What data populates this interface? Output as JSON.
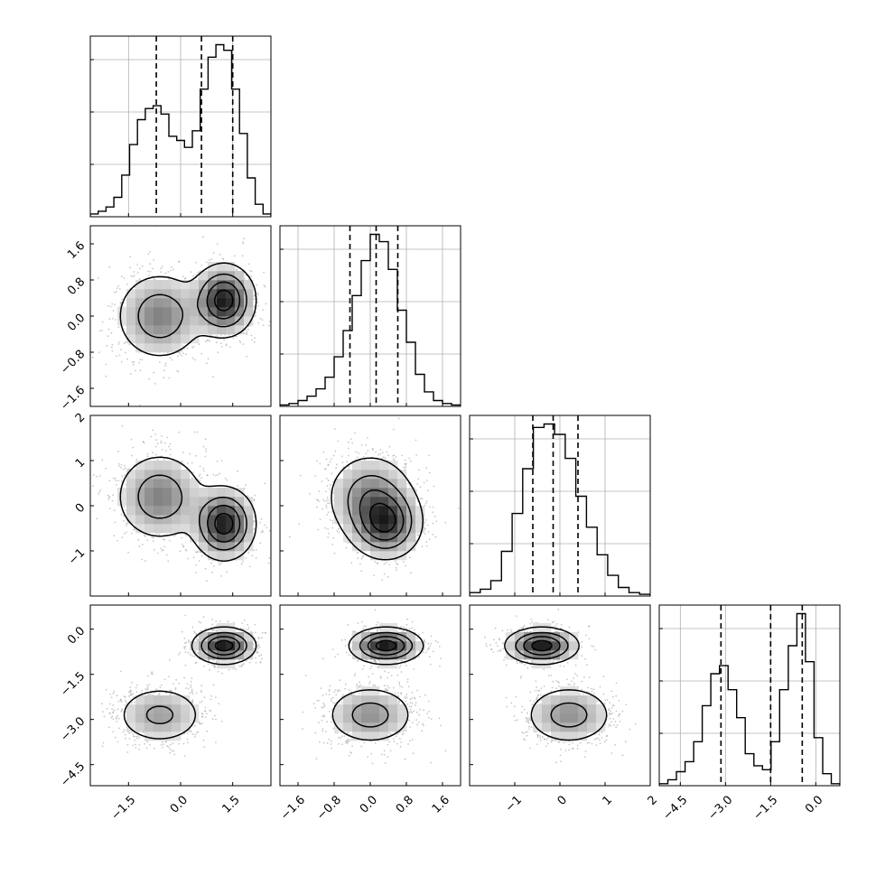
{
  "chart_data": {
    "type": "corner",
    "title": "",
    "grid": true,
    "parameters": [
      {
        "range": [
          -2.6,
          2.6
        ],
        "quantiles": [
          -0.7,
          0.6,
          1.5
        ],
        "ticks": [
          {
            "v": -1.5,
            "label": "−1.5"
          },
          {
            "v": 0.0,
            "label": "0.0"
          },
          {
            "v": 1.5,
            "label": "1.5"
          }
        ]
      },
      {
        "range": [
          -2.0,
          2.0
        ],
        "quantiles": [
          -0.45,
          0.13,
          0.61
        ],
        "ticks": [
          {
            "v": -1.6,
            "label": "−1.6"
          },
          {
            "v": -0.8,
            "label": "−0.8"
          },
          {
            "v": 0.0,
            "label": "0.0"
          },
          {
            "v": 0.8,
            "label": "0.8"
          },
          {
            "v": 1.6,
            "label": "1.6"
          }
        ]
      },
      {
        "range": [
          -2.0,
          2.0
        ],
        "quantiles": [
          -0.6,
          -0.15,
          0.4
        ],
        "ticks": [
          {
            "v": -1,
            "label": "−1"
          },
          {
            "v": 0,
            "label": "0"
          },
          {
            "v": 1,
            "label": "1"
          },
          {
            "v": 2,
            "label": "2"
          }
        ]
      },
      {
        "range": [
          -5.2,
          0.8
        ],
        "quantiles": [
          -3.15,
          -1.5,
          -0.45
        ],
        "ticks": [
          {
            "v": -4.5,
            "label": "−4.5"
          },
          {
            "v": -3.0,
            "label": "−3.0"
          },
          {
            "v": -1.5,
            "label": "−1.5"
          },
          {
            "v": 0.0,
            "label": "0.0"
          }
        ]
      }
    ],
    "histograms": [
      [
        2,
        4,
        7,
        14,
        30,
        52,
        70,
        78,
        80,
        74,
        58,
        55,
        50,
        62,
        92,
        115,
        124,
        120,
        92,
        60,
        28,
        9,
        2
      ],
      [
        1,
        2,
        4,
        7,
        12,
        20,
        34,
        52,
        76,
        100,
        118,
        113,
        94,
        66,
        44,
        22,
        10,
        4,
        2,
        1
      ],
      [
        2,
        4,
        9,
        26,
        48,
        74,
        98,
        100,
        94,
        80,
        58,
        40,
        24,
        12,
        5,
        2,
        1
      ],
      [
        1,
        3,
        7,
        12,
        22,
        40,
        56,
        60,
        48,
        34,
        16,
        10,
        8,
        22,
        48,
        70,
        86,
        62,
        24,
        6,
        1
      ]
    ],
    "components": [
      {
        "w": 0.5,
        "mean": [
          -0.6,
          0.0,
          0.2,
          -2.85
        ],
        "std": [
          0.65,
          0.5,
          0.5,
          0.5
        ]
      },
      {
        "w": 0.5,
        "mean": [
          1.25,
          0.35,
          -0.4,
          -0.55
        ],
        "std": [
          0.45,
          0.4,
          0.4,
          0.3
        ]
      }
    ]
  }
}
